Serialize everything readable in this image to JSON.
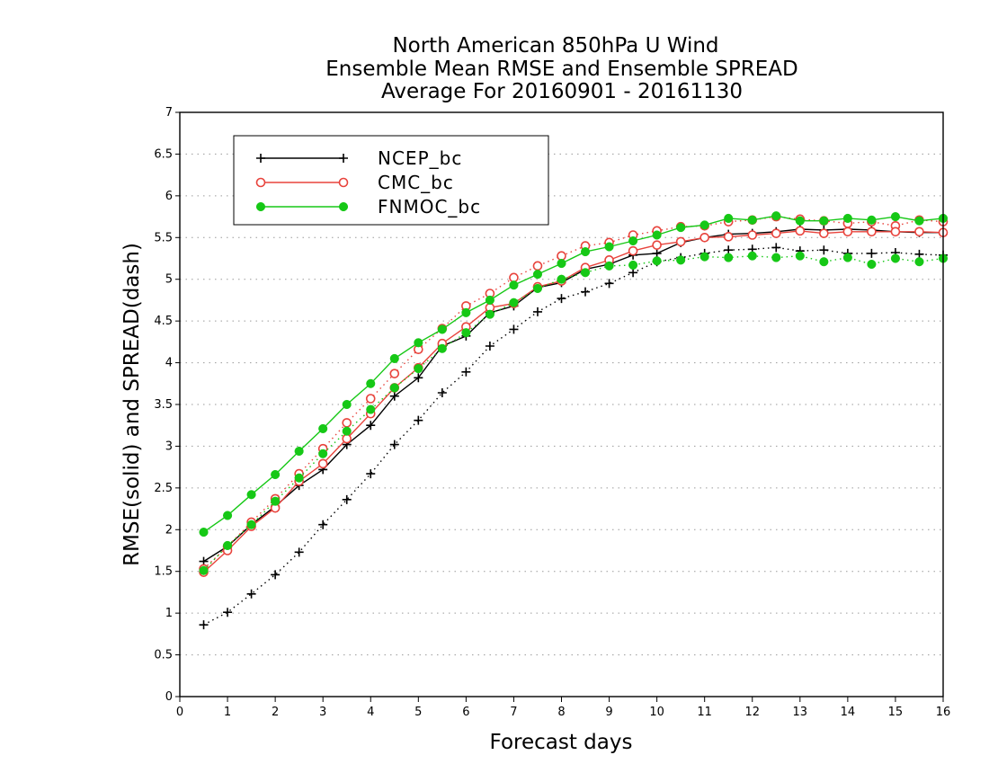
{
  "chart_data": {
    "type": "line",
    "title_lines": [
      "North American 850hPa U Wind",
      "Ensemble Mean RMSE and Ensemble SPREAD",
      "Average For 20160901 - 20161130"
    ],
    "xlabel": "Forecast days",
    "ylabel": "RMSE(solid) and SPREAD(dash)",
    "xlim": [
      0,
      16
    ],
    "ylim": [
      0,
      7
    ],
    "x_ticks": [
      "0",
      "1",
      "2",
      "3",
      "4",
      "5",
      "6",
      "7",
      "8",
      "9",
      "10",
      "11",
      "12",
      "13",
      "14",
      "15",
      "16"
    ],
    "y_ticks": [
      "0",
      "0.5",
      "1",
      "1.5",
      "2",
      "2.5",
      "3",
      "3.5",
      "4",
      "4.5",
      "5",
      "5.5",
      "6",
      "6.5",
      "7"
    ],
    "grid": true,
    "legend_position": "top-left",
    "x": [
      0.5,
      1,
      1.5,
      2,
      2.5,
      3,
      3.5,
      4,
      4.5,
      5,
      5.5,
      6,
      6.5,
      7,
      7.5,
      8,
      8.5,
      9,
      9.5,
      10,
      10.5,
      11,
      11.5,
      12,
      12.5,
      13,
      13.5,
      14,
      14.5,
      15,
      15.5,
      16
    ],
    "series": [
      {
        "name": "NCEP_bc",
        "color": "#000000",
        "marker": "plus",
        "rmse": [
          1.62,
          1.8,
          2.06,
          2.28,
          2.53,
          2.72,
          3.02,
          3.25,
          3.6,
          3.82,
          4.2,
          4.32,
          4.6,
          4.68,
          4.9,
          4.96,
          5.12,
          5.18,
          5.29,
          5.31,
          5.44,
          5.5,
          5.54,
          5.55,
          5.57,
          5.6,
          5.59,
          5.6,
          5.59,
          5.57,
          5.56,
          5.56
        ],
        "spread": [
          0.86,
          1.01,
          1.23,
          1.46,
          1.73,
          2.06,
          2.36,
          2.67,
          3.02,
          3.31,
          3.64,
          3.89,
          4.2,
          4.4,
          4.61,
          4.77,
          4.85,
          4.95,
          5.08,
          5.21,
          5.26,
          5.31,
          5.35,
          5.36,
          5.38,
          5.34,
          5.35,
          5.31,
          5.31,
          5.32,
          5.3,
          5.29
        ]
      },
      {
        "name": "CMC_bc",
        "color": "#e8433c",
        "marker": "circle-open",
        "rmse": [
          1.49,
          1.75,
          2.04,
          2.26,
          2.58,
          2.79,
          3.09,
          3.39,
          3.7,
          3.94,
          4.23,
          4.43,
          4.66,
          4.71,
          4.91,
          4.98,
          5.14,
          5.23,
          5.34,
          5.41,
          5.45,
          5.5,
          5.51,
          5.53,
          5.55,
          5.58,
          5.55,
          5.57,
          5.57,
          5.57,
          5.57,
          5.56
        ],
        "spread": [
          1.53,
          1.8,
          2.09,
          2.37,
          2.67,
          2.97,
          3.28,
          3.57,
          3.87,
          4.16,
          4.41,
          4.68,
          4.83,
          5.02,
          5.16,
          5.28,
          5.4,
          5.44,
          5.53,
          5.58,
          5.63,
          5.64,
          5.69,
          5.71,
          5.75,
          5.72,
          5.7,
          5.67,
          5.69,
          5.64,
          5.71,
          5.69
        ]
      },
      {
        "name": "FNMOC_bc",
        "color": "#16c816",
        "marker": "circle-filled",
        "rmse": [
          1.97,
          2.17,
          2.42,
          2.66,
          2.94,
          3.21,
          3.5,
          3.75,
          4.05,
          4.24,
          4.4,
          4.6,
          4.75,
          4.93,
          5.06,
          5.19,
          5.33,
          5.39,
          5.46,
          5.53,
          5.62,
          5.65,
          5.73,
          5.71,
          5.76,
          5.7,
          5.7,
          5.73,
          5.71,
          5.75,
          5.7,
          5.73
        ],
        "spread": [
          1.51,
          1.81,
          2.06,
          2.34,
          2.62,
          2.91,
          3.18,
          3.44,
          3.7,
          3.93,
          4.17,
          4.36,
          4.58,
          4.72,
          4.89,
          5.0,
          5.08,
          5.16,
          5.17,
          5.22,
          5.23,
          5.27,
          5.26,
          5.28,
          5.26,
          5.28,
          5.21,
          5.26,
          5.18,
          5.25,
          5.21,
          5.25
        ]
      }
    ]
  }
}
